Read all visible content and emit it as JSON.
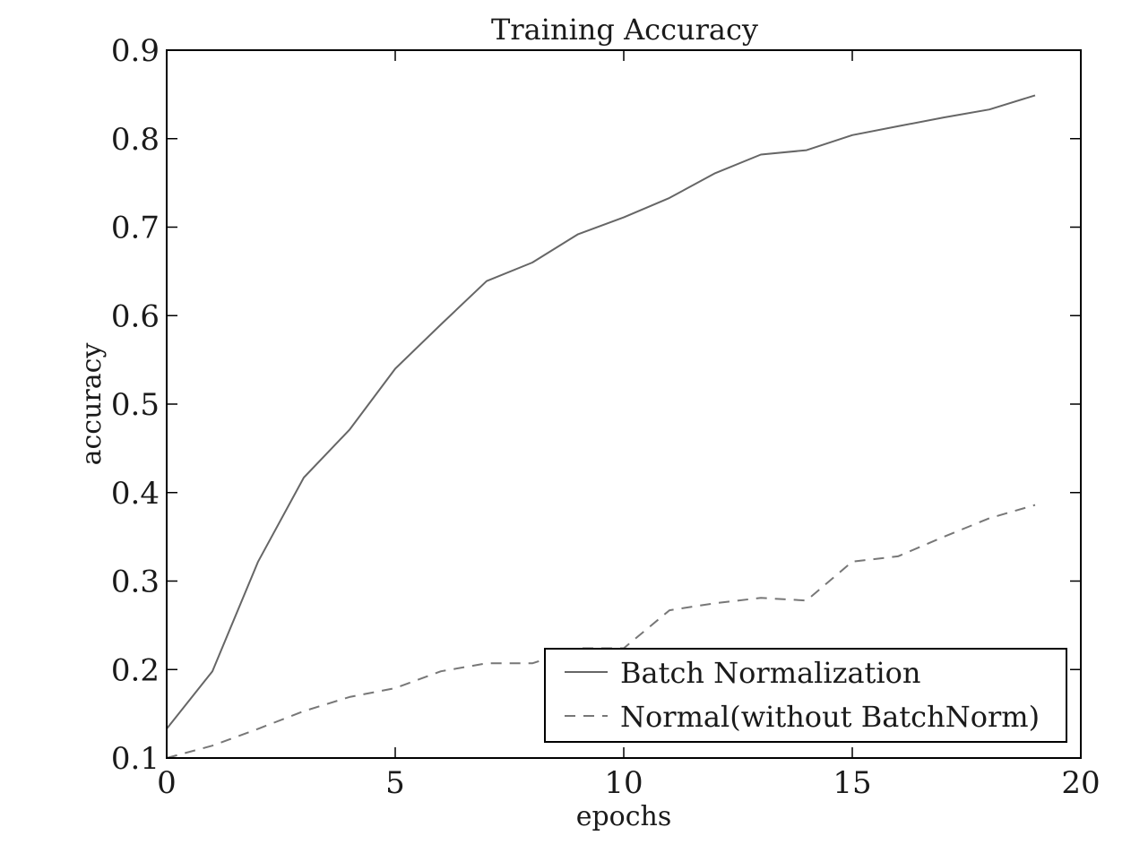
{
  "chart_data": {
    "type": "line",
    "title": "Training Accuracy",
    "xlabel": "epochs",
    "ylabel": "accuracy",
    "xlim": [
      0,
      20
    ],
    "ylim": [
      0.1,
      0.9
    ],
    "xticks": [
      0,
      5,
      10,
      15,
      20
    ],
    "xtick_labels": [
      "0",
      "5",
      "10",
      "15",
      "20"
    ],
    "yticks": [
      0.1,
      0.2,
      0.3,
      0.4,
      0.5,
      0.6,
      0.7,
      0.8,
      0.9
    ],
    "ytick_labels": [
      "0.1",
      "0.2",
      "0.3",
      "0.4",
      "0.5",
      "0.6",
      "0.7",
      "0.8",
      "0.9"
    ],
    "grid": false,
    "legend_position": "lower-right",
    "series": [
      {
        "name": "Batch Normalization",
        "style": "solid",
        "color": "#666666",
        "x": [
          0,
          1,
          2,
          3,
          4,
          5,
          6,
          7,
          8,
          9,
          10,
          11,
          12,
          13,
          14,
          15,
          16,
          17,
          18,
          19
        ],
        "y": [
          0.133,
          0.198,
          0.322,
          0.417,
          0.471,
          0.54,
          0.59,
          0.639,
          0.66,
          0.692,
          0.711,
          0.733,
          0.761,
          0.782,
          0.787,
          0.804,
          0.814,
          0.824,
          0.833,
          0.849
        ]
      },
      {
        "name": "Normal(without BatchNorm)",
        "style": "dashed",
        "color": "#777777",
        "x": [
          0,
          1,
          2,
          3,
          4,
          5,
          6,
          7,
          8,
          9,
          10,
          11,
          12,
          13,
          14,
          15,
          16,
          17,
          18,
          19
        ],
        "y": [
          0.1,
          0.114,
          0.133,
          0.153,
          0.169,
          0.179,
          0.198,
          0.207,
          0.207,
          0.224,
          0.224,
          0.267,
          0.275,
          0.281,
          0.278,
          0.322,
          0.328,
          0.35,
          0.371,
          0.386
        ]
      }
    ]
  }
}
